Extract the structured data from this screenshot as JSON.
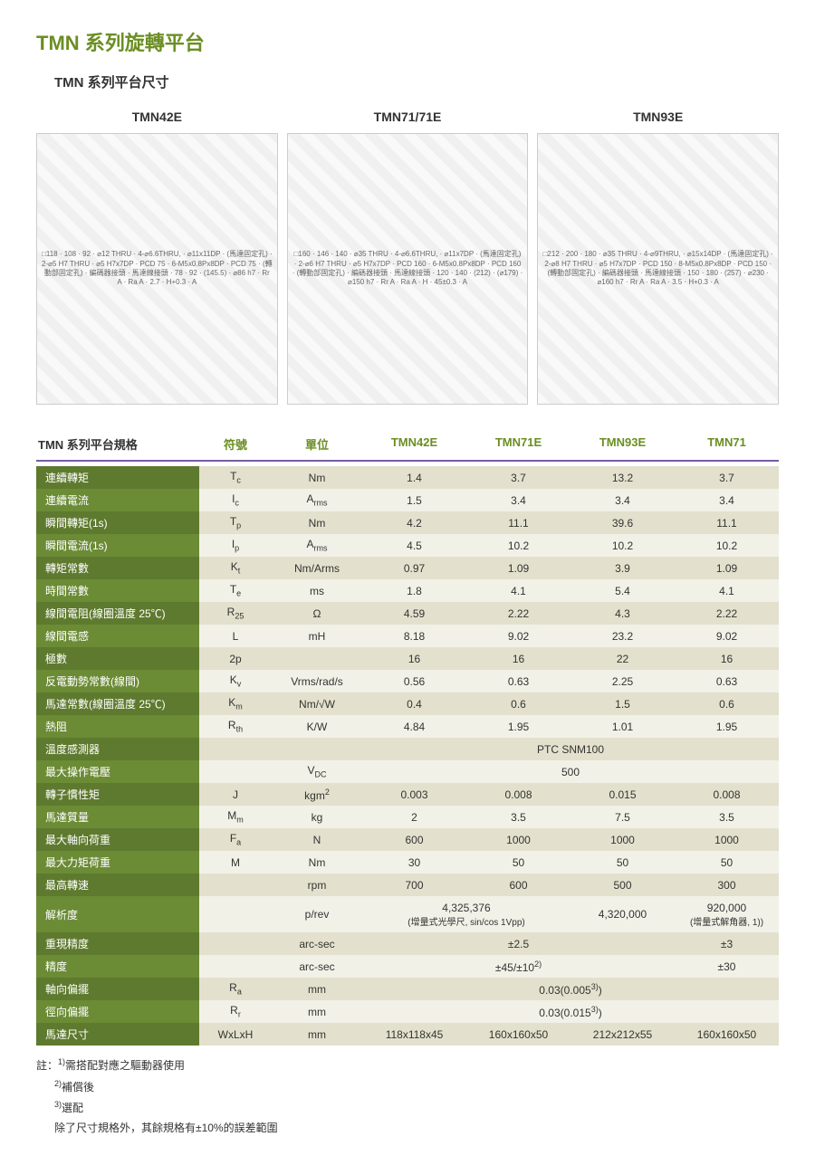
{
  "title": "TMN 系列旋轉平台",
  "subtitle_prefix": "TMN",
  "subtitle": "系列平台尺寸",
  "diagrams": [
    {
      "label": "TMN42E",
      "annotations": [
        "□118",
        "108",
        "92",
        "⌀12 THRU",
        "4-⌀6.6THRU,",
        "⌀11x11DP",
        "(馬達固定孔)",
        "2-⌀5 H7 THRU",
        "⌀5 H7x7DP",
        "PCD 75",
        "6-M5x0.8Px8DP",
        "PCD 75",
        "(轉動部固定孔)",
        "編碼器接頭",
        "馬達線接頭",
        "78",
        "92",
        "(145.5)",
        "⌀86 h7",
        "Rr A",
        "Ra A",
        "2.7",
        "H+0.3",
        "A"
      ]
    },
    {
      "label": "TMN71/71E",
      "annotations": [
        "□160",
        "146",
        "140",
        "⌀35 THRU",
        "4-⌀6.6THRU,",
        "⌀11x7DP",
        "(馬達固定孔)",
        "2-⌀6 H7 THRU",
        "⌀5 H7x7DP",
        "PCD 160",
        "6-M5x0.8Px8DP",
        "PCD 160",
        "(轉動部固定孔)",
        "編碼器接頭",
        "馬達線接頭",
        "120",
        "140",
        "(212)",
        "(⌀179)",
        "⌀150 h7",
        "Rr A",
        "Ra A",
        "H",
        "45±0.3",
        "A"
      ]
    },
    {
      "label": "TMN93E",
      "annotations": [
        "□212",
        "200",
        "180",
        "⌀35 THRU",
        "4-⌀9THRU,",
        "⌀15x14DP",
        "(馬達固定孔)",
        "2-⌀8 H7 THRU",
        "⌀5 H7x7DP",
        "PCD 150",
        "8-M5x0.8Px8DP",
        "PCD 150",
        "(轉動部固定孔)",
        "編碼器接頭",
        "馬達線接頭",
        "150",
        "180",
        "(257)",
        "⌀230",
        "⌀160 h7",
        "Rr A",
        "Ra A",
        "3.5",
        "H+0.3",
        "A"
      ]
    }
  ],
  "spec_header": {
    "label": "TMN",
    "label_suffix": "系列平台規格",
    "symbol": "符號",
    "unit": "單位",
    "models": [
      "TMN42E",
      "TMN71E",
      "TMN93E",
      "TMN71"
    ]
  },
  "spec_rows": [
    {
      "label": "連續轉矩",
      "symbol": "T",
      "sub": "c",
      "unit": "Nm",
      "vals": [
        "1.4",
        "3.7",
        "13.2",
        "3.7"
      ]
    },
    {
      "label": "連續電流",
      "symbol": "I",
      "sub": "c",
      "unit": "A",
      "unit_sub": "rms",
      "vals": [
        "1.5",
        "3.4",
        "3.4",
        "3.4"
      ]
    },
    {
      "label": "瞬間轉矩(1s)",
      "symbol": "T",
      "sub": "p",
      "unit": "Nm",
      "vals": [
        "4.2",
        "11.1",
        "39.6",
        "11.1"
      ]
    },
    {
      "label": "瞬間電流(1s)",
      "symbol": "I",
      "sub": "p",
      "unit": "A",
      "unit_sub": "rms",
      "vals": [
        "4.5",
        "10.2",
        "10.2",
        "10.2"
      ]
    },
    {
      "label": "轉矩常數",
      "symbol": "K",
      "sub": "t",
      "unit": "Nm/Arms",
      "vals": [
        "0.97",
        "1.09",
        "3.9",
        "1.09"
      ]
    },
    {
      "label": "時間常數",
      "symbol": "T",
      "sub": "e",
      "unit": "ms",
      "vals": [
        "1.8",
        "4.1",
        "5.4",
        "4.1"
      ]
    },
    {
      "label": "線間電阻(線圈溫度 25℃)",
      "symbol": "R",
      "sub": "25",
      "unit": "Ω",
      "vals": [
        "4.59",
        "2.22",
        "4.3",
        "2.22"
      ]
    },
    {
      "label": "線間電感",
      "symbol": "L",
      "unit": "mH",
      "vals": [
        "8.18",
        "9.02",
        "23.2",
        "9.02"
      ]
    },
    {
      "label": "極數",
      "symbol": "2p",
      "unit": "",
      "vals": [
        "16",
        "16",
        "22",
        "16"
      ]
    },
    {
      "label": "反電動勢常數(線間)",
      "symbol": "K",
      "sub": "v",
      "unit": "Vrms/rad/s",
      "vals": [
        "0.56",
        "0.63",
        "2.25",
        "0.63"
      ]
    },
    {
      "label": "馬達常數(線圈溫度 25℃)",
      "symbol": "K",
      "sub": "m",
      "unit": "Nm/√W",
      "vals": [
        "0.4",
        "0.6",
        "1.5",
        "0.6"
      ]
    },
    {
      "label": "熱阻",
      "symbol": "R",
      "sub": "th",
      "unit": "K/W",
      "vals": [
        "4.84",
        "1.95",
        "1.01",
        "1.95"
      ]
    },
    {
      "label": "溫度感測器",
      "symbol": "",
      "unit": "",
      "span_all": "PTC SNM100"
    },
    {
      "label": "最大操作電壓",
      "symbol": "",
      "unit": "V",
      "unit_sub": "DC",
      "span_all": "500"
    },
    {
      "label": "轉子慣性矩",
      "symbol": "J",
      "unit": "kgm",
      "unit_sup": "2",
      "vals": [
        "0.003",
        "0.008",
        "0.015",
        "0.008"
      ]
    },
    {
      "label": "馬達質量",
      "symbol": "M",
      "sub": "m",
      "unit": "kg",
      "vals": [
        "2",
        "3.5",
        "7.5",
        "3.5"
      ]
    },
    {
      "label": "最大軸向荷重",
      "symbol": "F",
      "sub": "a",
      "unit": "N",
      "vals": [
        "600",
        "1000",
        "1000",
        "1000"
      ]
    },
    {
      "label": "最大力矩荷重",
      "symbol": "M",
      "unit": "Nm",
      "vals": [
        "30",
        "50",
        "50",
        "50"
      ]
    },
    {
      "label": "最高轉速",
      "symbol": "",
      "unit": "rpm",
      "vals": [
        "700",
        "600",
        "500",
        "300"
      ]
    },
    {
      "label": "解析度",
      "symbol": "",
      "unit": "p/rev",
      "resolution": true,
      "val_a": "4,325,376",
      "val_a_note": "(增量式光學尺, sin/cos 1Vpp)",
      "val_b": "4,320,000",
      "val_c": "920,000",
      "val_c_note": "(增量式解角器, 1))"
    },
    {
      "label": "重現精度",
      "symbol": "",
      "unit": "arc-sec",
      "span3": "±2.5",
      "val4": "±3"
    },
    {
      "label": "精度",
      "symbol": "",
      "unit": "arc-sec",
      "span3": "±45/±10",
      "span3_sup": "2)",
      "val4": "±30"
    },
    {
      "label": "軸向偏擺",
      "symbol": "R",
      "sub": "a",
      "unit": "mm",
      "span_all": "0.03(0.005",
      "span_all_sup": "3)",
      "span_all_close": ")"
    },
    {
      "label": "徑向偏擺",
      "symbol": "R",
      "sub": "r",
      "unit": "mm",
      "span_all": "0.03(0.015",
      "span_all_sup": "3)",
      "span_all_close": ")"
    },
    {
      "label": "馬達尺寸",
      "symbol": "WxLxH",
      "unit": "mm",
      "vals": [
        "118x118x45",
        "160x160x50",
        "212x212x55",
        "160x160x50"
      ]
    }
  ],
  "notes": {
    "prefix": "註：",
    "items": [
      {
        "sup": "1)",
        "text": "需搭配對應之驅動器使用"
      },
      {
        "sup": "2)",
        "text": "補償後"
      },
      {
        "sup": "3)",
        "text": "選配"
      }
    ],
    "tail": "除了尺寸規格外，其餘規格有±10%的誤差範圍"
  }
}
